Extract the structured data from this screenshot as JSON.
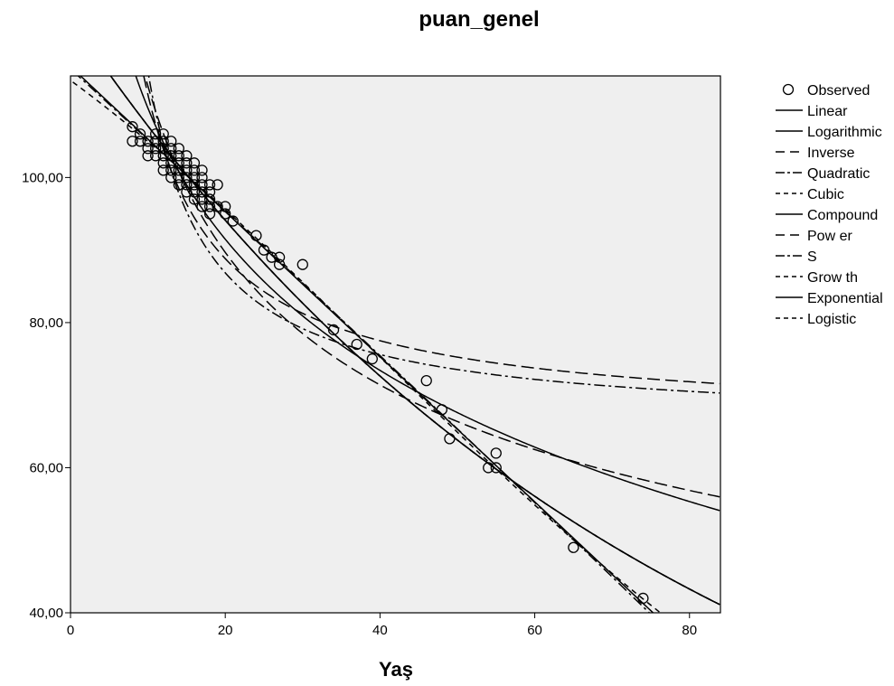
{
  "chart_data": {
    "type": "scatter",
    "title": "puan_genel",
    "xlabel": "Yaş",
    "ylabel": "",
    "xlim": [
      0,
      84
    ],
    "ylim": [
      40,
      114
    ],
    "xticks": [
      0,
      20,
      40,
      60,
      80
    ],
    "yticks": [
      40,
      60,
      80,
      100
    ],
    "xtick_labels": [
      "0",
      "20",
      "40",
      "60",
      "80"
    ],
    "ytick_labels": [
      "40,00",
      "60,00",
      "80,00",
      "100,00"
    ],
    "plot_background": "#efefef",
    "legend_position": "right",
    "observed": [
      [
        8,
        107
      ],
      [
        8,
        105
      ],
      [
        9,
        106
      ],
      [
        9,
        105
      ],
      [
        10,
        105
      ],
      [
        10,
        104
      ],
      [
        10,
        103
      ],
      [
        11,
        106
      ],
      [
        11,
        105
      ],
      [
        11,
        104
      ],
      [
        11,
        103
      ],
      [
        12,
        106
      ],
      [
        12,
        105
      ],
      [
        12,
        104
      ],
      [
        12,
        103
      ],
      [
        12,
        102
      ],
      [
        12,
        101
      ],
      [
        13,
        105
      ],
      [
        13,
        104
      ],
      [
        13,
        103
      ],
      [
        13,
        102
      ],
      [
        13,
        101
      ],
      [
        13,
        100
      ],
      [
        14,
        104
      ],
      [
        14,
        103
      ],
      [
        14,
        102
      ],
      [
        14,
        101
      ],
      [
        14,
        100
      ],
      [
        14,
        99
      ],
      [
        15,
        103
      ],
      [
        15,
        102
      ],
      [
        15,
        101
      ],
      [
        15,
        100
      ],
      [
        15,
        99
      ],
      [
        15,
        98
      ],
      [
        16,
        102
      ],
      [
        16,
        101
      ],
      [
        16,
        100
      ],
      [
        16,
        99
      ],
      [
        16,
        98
      ],
      [
        16,
        97
      ],
      [
        17,
        101
      ],
      [
        17,
        100
      ],
      [
        17,
        99
      ],
      [
        17,
        98
      ],
      [
        17,
        97
      ],
      [
        17,
        96
      ],
      [
        18,
        99
      ],
      [
        18,
        98
      ],
      [
        18,
        97
      ],
      [
        18,
        96
      ],
      [
        18,
        95
      ],
      [
        19,
        99
      ],
      [
        19,
        96
      ],
      [
        20,
        96
      ],
      [
        20,
        95
      ],
      [
        21,
        94
      ],
      [
        24,
        92
      ],
      [
        25,
        90
      ],
      [
        26,
        89
      ],
      [
        27,
        89
      ],
      [
        27,
        88
      ],
      [
        30,
        88
      ],
      [
        34,
        79
      ],
      [
        37,
        77
      ],
      [
        39,
        75
      ],
      [
        46,
        72
      ],
      [
        48,
        68
      ],
      [
        49,
        64
      ],
      [
        54,
        60
      ],
      [
        55,
        62
      ],
      [
        55,
        60
      ],
      [
        65,
        49
      ],
      [
        74,
        42
      ]
    ],
    "series": [
      {
        "name": "Observed",
        "style": "circle"
      },
      {
        "name": "Linear",
        "style": "solid"
      },
      {
        "name": "Logarithmic",
        "style": "solid"
      },
      {
        "name": "Inverse",
        "style": "long-dash"
      },
      {
        "name": "Quadratic",
        "style": "dash-dot"
      },
      {
        "name": "Cubic",
        "style": "short-dash"
      },
      {
        "name": "Compound",
        "style": "solid"
      },
      {
        "name": "Pow er",
        "style": "long-dash"
      },
      {
        "name": "S",
        "style": "dash-dot"
      },
      {
        "name": "Grow th",
        "style": "short-dash"
      },
      {
        "name": "Exponential",
        "style": "solid"
      },
      {
        "name": "Logistic",
        "style": "short-dash"
      }
    ]
  }
}
